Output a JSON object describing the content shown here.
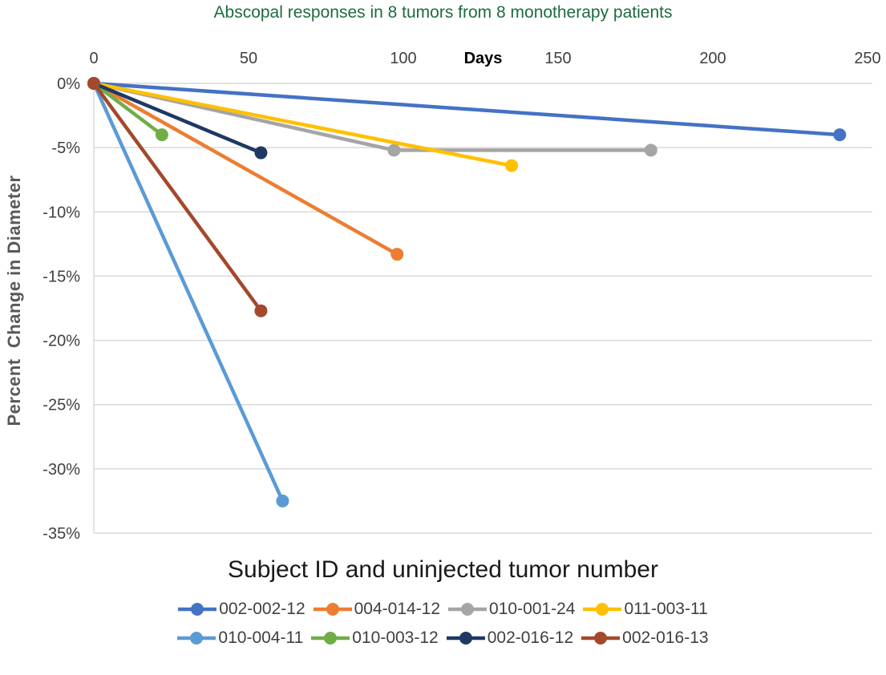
{
  "chart": {
    "background": "#ffffff",
    "grid_color": "#D9D9D9",
    "tick_color": "#404040",
    "axis_title_color": "#595959",
    "title_color": "#1E6B41"
  },
  "chart_data": {
    "type": "line",
    "title": "Abscopal responses in 8 tumors from 8 monotherapy patients",
    "xlabel": "Days",
    "ylabel": "Percent  Change in Diameter",
    "xlim": [
      0,
      250
    ],
    "ylim": [
      -35,
      0
    ],
    "x_ticks": [
      0,
      50,
      100,
      150,
      200,
      250
    ],
    "y_ticks": [
      0,
      -5,
      -10,
      -15,
      -20,
      -25,
      -30,
      -35
    ],
    "y_tick_labels": [
      "0%",
      "-5%",
      "-10%",
      "-15%",
      "-20%",
      "-25%",
      "-30%",
      "-35%"
    ],
    "grid": true,
    "legend_position": "bottom",
    "series": [
      {
        "name": "002-002-12",
        "color": "#4472C4",
        "points": [
          [
            0,
            0
          ],
          [
            241,
            -4.0
          ]
        ]
      },
      {
        "name": "004-014-12",
        "color": "#ED7D31",
        "points": [
          [
            0,
            0
          ],
          [
            98,
            -13.3
          ]
        ]
      },
      {
        "name": "010-001-24",
        "color": "#A5A5A5",
        "points": [
          [
            0,
            0
          ],
          [
            97,
            -5.2
          ],
          [
            180,
            -5.2
          ]
        ]
      },
      {
        "name": "011-003-11",
        "color": "#FFC000",
        "points": [
          [
            0,
            0
          ],
          [
            135,
            -6.4
          ]
        ]
      },
      {
        "name": "010-004-11",
        "color": "#5B9BD5",
        "points": [
          [
            0,
            0
          ],
          [
            61,
            -32.5
          ]
        ]
      },
      {
        "name": "010-003-12",
        "color": "#70AD47",
        "points": [
          [
            0,
            0
          ],
          [
            22,
            -4.0
          ]
        ]
      },
      {
        "name": "002-016-12",
        "color": "#1F3864",
        "points": [
          [
            0,
            0
          ],
          [
            54,
            -5.4
          ]
        ]
      },
      {
        "name": "002-016-13",
        "color": "#A3492C",
        "points": [
          [
            0,
            0
          ],
          [
            54,
            -17.7
          ]
        ]
      }
    ]
  },
  "legend": {
    "title": "Subject ID and uninjected tumor number",
    "per_row": 4
  }
}
